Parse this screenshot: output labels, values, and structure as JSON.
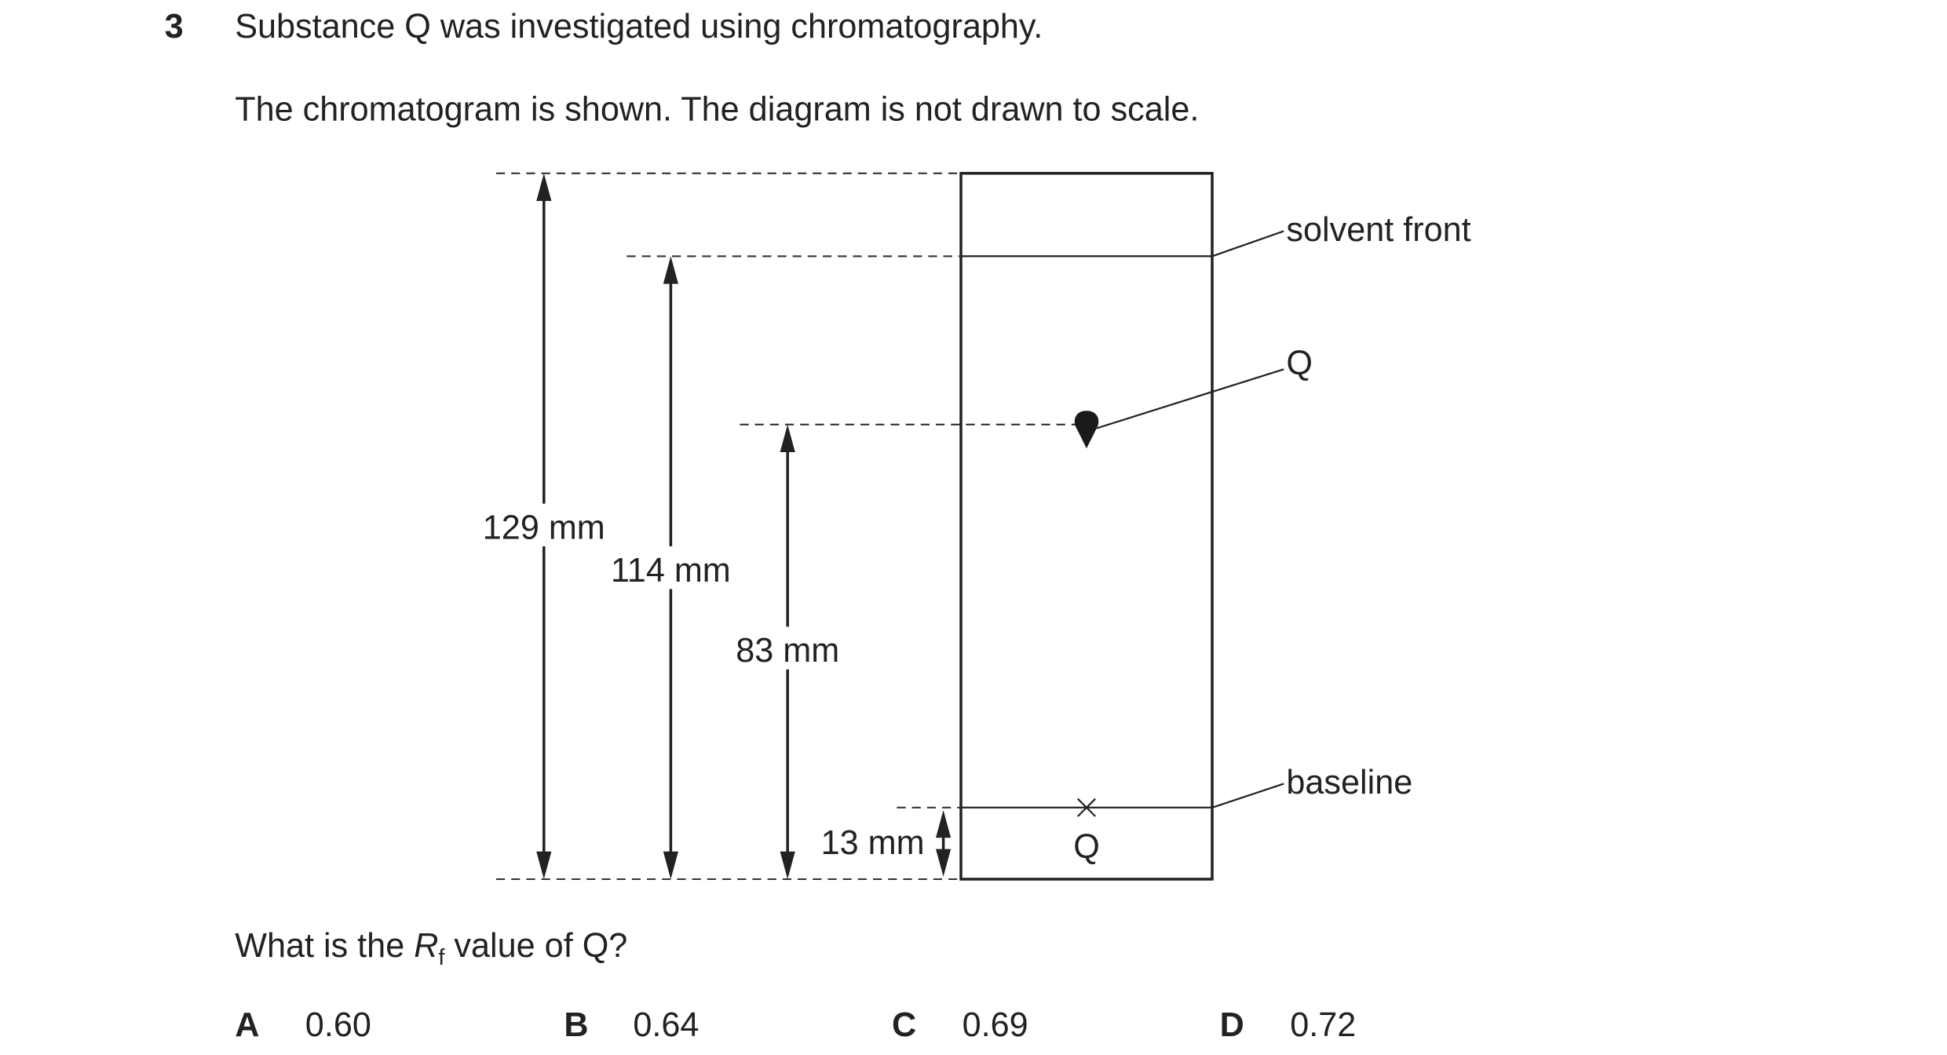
{
  "question": {
    "number": "3",
    "intro": "Substance Q was investigated using chromatography.",
    "note": "The chromatogram is shown. The diagram is not drawn to scale."
  },
  "diagram": {
    "distances": [
      "129 mm",
      "114 mm",
      "83 mm",
      "13 mm"
    ],
    "labels": [
      "solvent front",
      "Q",
      "baseline"
    ],
    "spot_label": "Q"
  },
  "prompt": {
    "before": "What is the ",
    "symbol": "R",
    "subscript": "f",
    "after": " value of Q?"
  },
  "options": [
    {
      "letter": "A",
      "text": "0.60"
    },
    {
      "letter": "B",
      "text": "0.64"
    },
    {
      "letter": "C",
      "text": "0.69"
    },
    {
      "letter": "D",
      "text": "0.72"
    }
  ]
}
